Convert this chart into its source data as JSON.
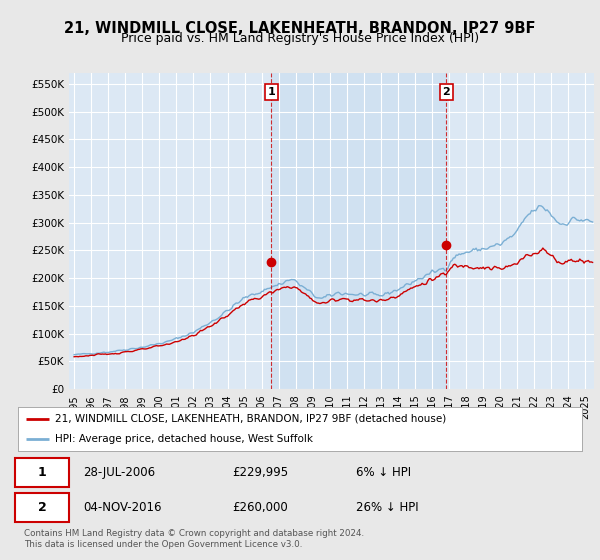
{
  "title": "21, WINDMILL CLOSE, LAKENHEATH, BRANDON, IP27 9BF",
  "subtitle": "Price paid vs. HM Land Registry's House Price Index (HPI)",
  "ylabel_ticks": [
    "£0",
    "£50K",
    "£100K",
    "£150K",
    "£200K",
    "£250K",
    "£300K",
    "£350K",
    "£400K",
    "£450K",
    "£500K",
    "£550K"
  ],
  "ytick_values": [
    0,
    50000,
    100000,
    150000,
    200000,
    250000,
    300000,
    350000,
    400000,
    450000,
    500000,
    550000
  ],
  "ylim": [
    0,
    570000
  ],
  "fig_bg_color": "#e8e8e8",
  "plot_bg_color": "#dce8f4",
  "shade_color": "#c8ddf0",
  "grid_color": "#ffffff",
  "red_color": "#cc0000",
  "blue_color": "#7bafd4",
  "title_fontsize": 10.5,
  "subtitle_fontsize": 9,
  "transaction1_date": "28-JUL-2006",
  "transaction1_price": "£229,995",
  "transaction1_pct": "6% ↓ HPI",
  "transaction2_date": "04-NOV-2016",
  "transaction2_price": "£260,000",
  "transaction2_pct": "26% ↓ HPI",
  "legend_label_red": "21, WINDMILL CLOSE, LAKENHEATH, BRANDON, IP27 9BF (detached house)",
  "legend_label_blue": "HPI: Average price, detached house, West Suffolk",
  "footer": "Contains HM Land Registry data © Crown copyright and database right 2024.\nThis data is licensed under the Open Government Licence v3.0.",
  "marker1_x": 2006.57,
  "marker1_y": 229995,
  "marker2_x": 2016.84,
  "marker2_y": 260000,
  "vline1_x": 2006.57,
  "vline2_x": 2016.84,
  "xlim_left": 1994.7,
  "xlim_right": 2025.5
}
